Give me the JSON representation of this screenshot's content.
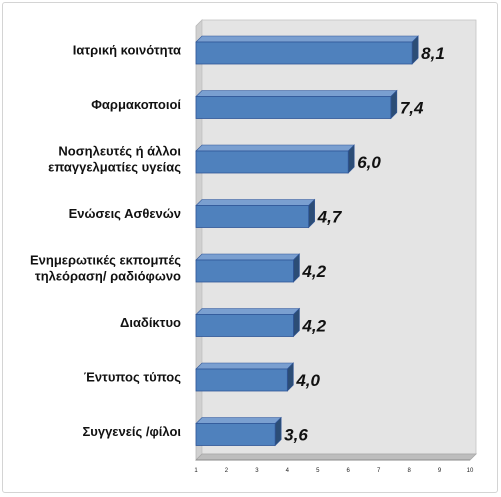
{
  "chart_data": {
    "type": "bar",
    "orientation": "horizontal",
    "categories": [
      "Ιατρική κοινότητα",
      "Φαρμακοποιοί",
      "Νοσηλευτές ή άλλοι επαγγελματίες υγείας",
      "Ενώσεις Ασθενών",
      "Ενημερωτικές εκπομπές τηλεόραση/ ραδιόφωνο",
      "Διαδίκτυο",
      "Έντυπος τύπος",
      "Συγγενείς /φίλοι"
    ],
    "category_lines": [
      [
        "Ιατρική κοινότητα"
      ],
      [
        "Φαρμακοποιοί"
      ],
      [
        "Νοσηλευτές ή άλλοι",
        "επαγγελματίες υγείας"
      ],
      [
        "Ενώσεις Ασθενών"
      ],
      [
        "Ενημερωτικές εκπομπές",
        "τηλεόραση/ ραδιόφωνο"
      ],
      [
        "Διαδίκτυο"
      ],
      [
        "Έντυπος τύπος"
      ],
      [
        "Συγγενείς /φίλοι"
      ]
    ],
    "values": [
      8.1,
      7.4,
      6.0,
      4.7,
      4.2,
      4.2,
      4.0,
      3.6
    ],
    "value_labels": [
      "8,1",
      "7,4",
      "6,0",
      "4,7",
      "4,2",
      "4,2",
      "4,0",
      "3,6"
    ],
    "xlim": [
      1,
      10
    ],
    "x_ticks": [
      "1",
      "2",
      "3",
      "4",
      "5",
      "6",
      "7",
      "8",
      "9",
      "10"
    ],
    "title": "",
    "xlabel": "",
    "ylabel": "",
    "grid": false,
    "legend": "none",
    "colors": {
      "bar_front": "#4f81bd",
      "bar_top": "#7a9fd0",
      "bar_side": "#2c4d76",
      "bar_edge": "#2f5597",
      "wall": "#e4e4e4",
      "floor": "#bdbdbd"
    }
  }
}
